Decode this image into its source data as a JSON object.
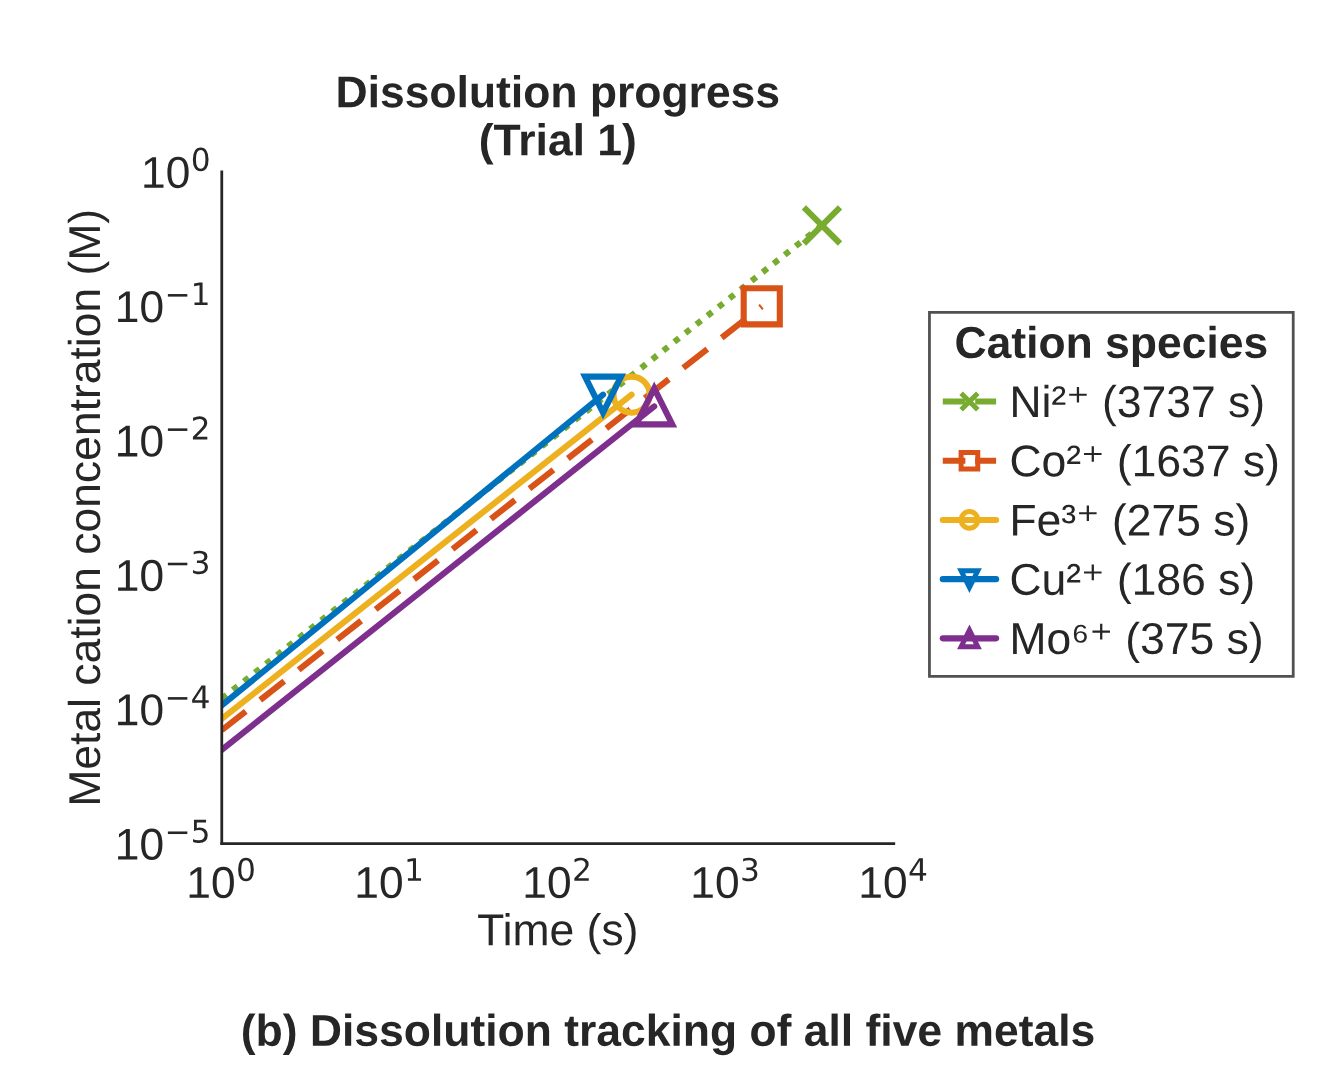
{
  "chart_data": {
    "type": "line",
    "title": "Dissolution progress\n(Trial 1)",
    "xlabel": "Time (s)",
    "ylabel": "Metal cation concentration (M)",
    "legend_title": "Cation species",
    "annotations": [
      "(b) Dissolution tracking of all five metals"
    ],
    "log": "xy",
    "grid": false,
    "legend": "right",
    "xlim": [
      1,
      10000
    ],
    "xticks": [
      {
        "value": 1,
        "label": "10$^{0}$"
      },
      {
        "value": 10,
        "label": "10$^{1}$"
      },
      {
        "value": 100,
        "label": "10$^{2}$"
      },
      {
        "value": 1000,
        "label": "10$^{3}$"
      },
      {
        "value": 10000,
        "label": "10$^{4}$"
      }
    ],
    "ylim": [
      1e-05,
      1
    ],
    "yticks": [
      {
        "value": 1e-05,
        "label": "10$^{−5}$"
      },
      {
        "value": 0.0001,
        "label": "10$^{−4}$"
      },
      {
        "value": 0.001,
        "label": "10$^{−3}$"
      },
      {
        "value": 0.01,
        "label": "10$^{−2}$"
      },
      {
        "value": 0.1,
        "label": "10$^{−1}$"
      },
      {
        "value": 1,
        "label": "10$^{0}$"
      }
    ],
    "series": [
      {
        "name": "Ni²⁺ (3737 s)",
        "color": "#77ac30",
        "x": [
          1,
          3737
        ],
        "values": [
          0.00012,
          0.4
        ],
        "marker": "cross",
        "line_style": "dotted"
      },
      {
        "name": "Co²⁺ (1637 s)",
        "color": "#d95319",
        "x": [
          1,
          1637
        ],
        "values": [
          7e-05,
          0.1
        ],
        "marker": "square",
        "line_style": "dashed"
      },
      {
        "name": "Fe³⁺ (275 s)",
        "color": "#edb120",
        "x": [
          1,
          275
        ],
        "values": [
          8.5e-05,
          0.022
        ],
        "marker": "circle",
        "line_style": "solid"
      },
      {
        "name": "Cu²⁺ (186 s)",
        "color": "#0072bd",
        "x": [
          1,
          186
        ],
        "values": [
          0.000107,
          0.022
        ],
        "marker": "triangle_down",
        "line_style": "solid"
      },
      {
        "name": "Mo⁶⁺ (375 s)",
        "color": "#7e2f8e",
        "x": [
          1,
          375
        ],
        "values": [
          5e-05,
          0.018
        ],
        "marker": "triangle",
        "line_style": "solid"
      }
    ]
  }
}
